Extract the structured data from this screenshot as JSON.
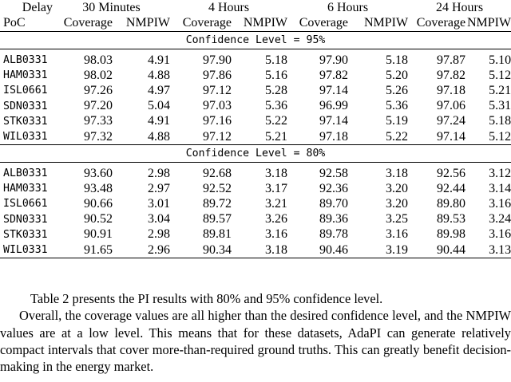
{
  "header": {
    "delay_label": "Delay",
    "poc_label": "PoC",
    "periods": [
      "30 Minutes",
      "4 Hours",
      "6 Hours",
      "24 Hours"
    ],
    "coverage_label": "Coverage",
    "nmpiw_label": "NMPIW"
  },
  "groups": [
    {
      "label": "Confidence Level = 95%",
      "rows": [
        {
          "poc": "ALB0331",
          "v": [
            "98.03",
            "4.91",
            "97.90",
            "5.18",
            "97.90",
            "5.18",
            "97.87",
            "5.10"
          ]
        },
        {
          "poc": "HAM0331",
          "v": [
            "98.02",
            "4.88",
            "97.86",
            "5.16",
            "97.82",
            "5.20",
            "97.82",
            "5.12"
          ]
        },
        {
          "poc": "ISL0661",
          "v": [
            "97.26",
            "4.97",
            "97.12",
            "5.28",
            "97.14",
            "5.26",
            "97.18",
            "5.21"
          ]
        },
        {
          "poc": "SDN0331",
          "v": [
            "97.20",
            "5.04",
            "97.03",
            "5.36",
            "96.99",
            "5.36",
            "97.06",
            "5.31"
          ]
        },
        {
          "poc": "STK0331",
          "v": [
            "97.33",
            "4.91",
            "97.16",
            "5.22",
            "97.14",
            "5.19",
            "97.24",
            "5.18"
          ]
        },
        {
          "poc": "WIL0331",
          "v": [
            "97.32",
            "4.88",
            "97.12",
            "5.21",
            "97.18",
            "5.22",
            "97.14",
            "5.12"
          ]
        }
      ]
    },
    {
      "label": "Confidence Level = 80%",
      "rows": [
        {
          "poc": "ALB0331",
          "v": [
            "93.60",
            "2.98",
            "92.68",
            "3.18",
            "92.58",
            "3.18",
            "92.56",
            "3.12"
          ]
        },
        {
          "poc": "HAM0331",
          "v": [
            "93.48",
            "2.97",
            "92.52",
            "3.17",
            "92.36",
            "3.20",
            "92.44",
            "3.14"
          ]
        },
        {
          "poc": "ISL0661",
          "v": [
            "90.66",
            "3.01",
            "89.72",
            "3.21",
            "89.70",
            "3.20",
            "89.80",
            "3.16"
          ]
        },
        {
          "poc": "SDN0331",
          "v": [
            "90.52",
            "3.04",
            "89.57",
            "3.26",
            "89.36",
            "3.25",
            "89.53",
            "3.24"
          ]
        },
        {
          "poc": "STK0331",
          "v": [
            "90.91",
            "2.98",
            "89.81",
            "3.16",
            "89.78",
            "3.16",
            "89.98",
            "3.16"
          ]
        },
        {
          "poc": "WIL0331",
          "v": [
            "91.65",
            "2.96",
            "90.34",
            "3.18",
            "90.46",
            "3.19",
            "90.44",
            "3.13"
          ]
        }
      ]
    }
  ],
  "body_text": {
    "paragraph_1": "Table 2 presents the PI results with 80% and 95% confidence level.",
    "paragraph_2": "Overall, the coverage values are all higher than the desired confidence level, and the NMPIW values are at a low level. This means that for these datasets, AdaPI can generate relatively compact intervals that cover more-than-required ground truths. This can greatly benefit decision-making in the energy market."
  }
}
